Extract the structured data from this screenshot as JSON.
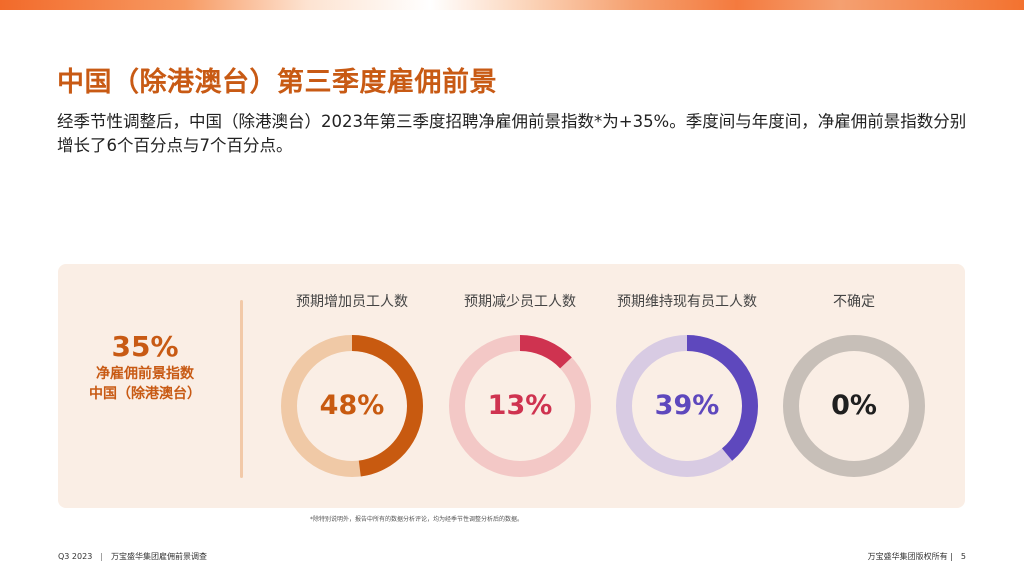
{
  "slide": {
    "title": "中国（除港澳台）第三季度雇佣前景",
    "subtitle": "经季节性调整后，中国（除港澳台）2023年第三季度招聘净雇佣前景指数*为+35%。季度间与年度间，净雇佣前景指数分别增长了6个百分点与7个百分点。"
  },
  "index": {
    "value": "35%",
    "label_line1": "净雇佣前景指数",
    "label_line2": "中国（除港澳台）"
  },
  "chart_data": {
    "type": "pie",
    "series": [
      {
        "name": "预期增加员工人数",
        "value": 48,
        "label": "48%",
        "color": "#c85a10",
        "track_color": "#f0c9a6",
        "text_color": "#c85a10"
      },
      {
        "name": "预期减少员工人数",
        "value": 13,
        "label": "13%",
        "color": "#cf3350",
        "track_color": "#f3c8c6",
        "text_color": "#cf3350"
      },
      {
        "name": "预期维持现有员工人数",
        "value": 39,
        "label": "39%",
        "color": "#5e48bd",
        "track_color": "#d8cbe3",
        "text_color": "#5e48bd"
      },
      {
        "name": "不确定",
        "value": 0,
        "label": "0%",
        "color": "#8f8781",
        "track_color": "#c7bfb8",
        "text_color": "#1f1f1f"
      }
    ]
  },
  "footnote": "*除特别说明外，报告中所有的数据分析评论，均为经季节性调整分析后的数据。",
  "footer": {
    "left_code": "Q3 2023",
    "left_sep": "|",
    "left_title": "万宝盛华集团雇佣前景调查",
    "right_copyright": "万宝盛华集团版权所有 |",
    "page_number": "5"
  }
}
